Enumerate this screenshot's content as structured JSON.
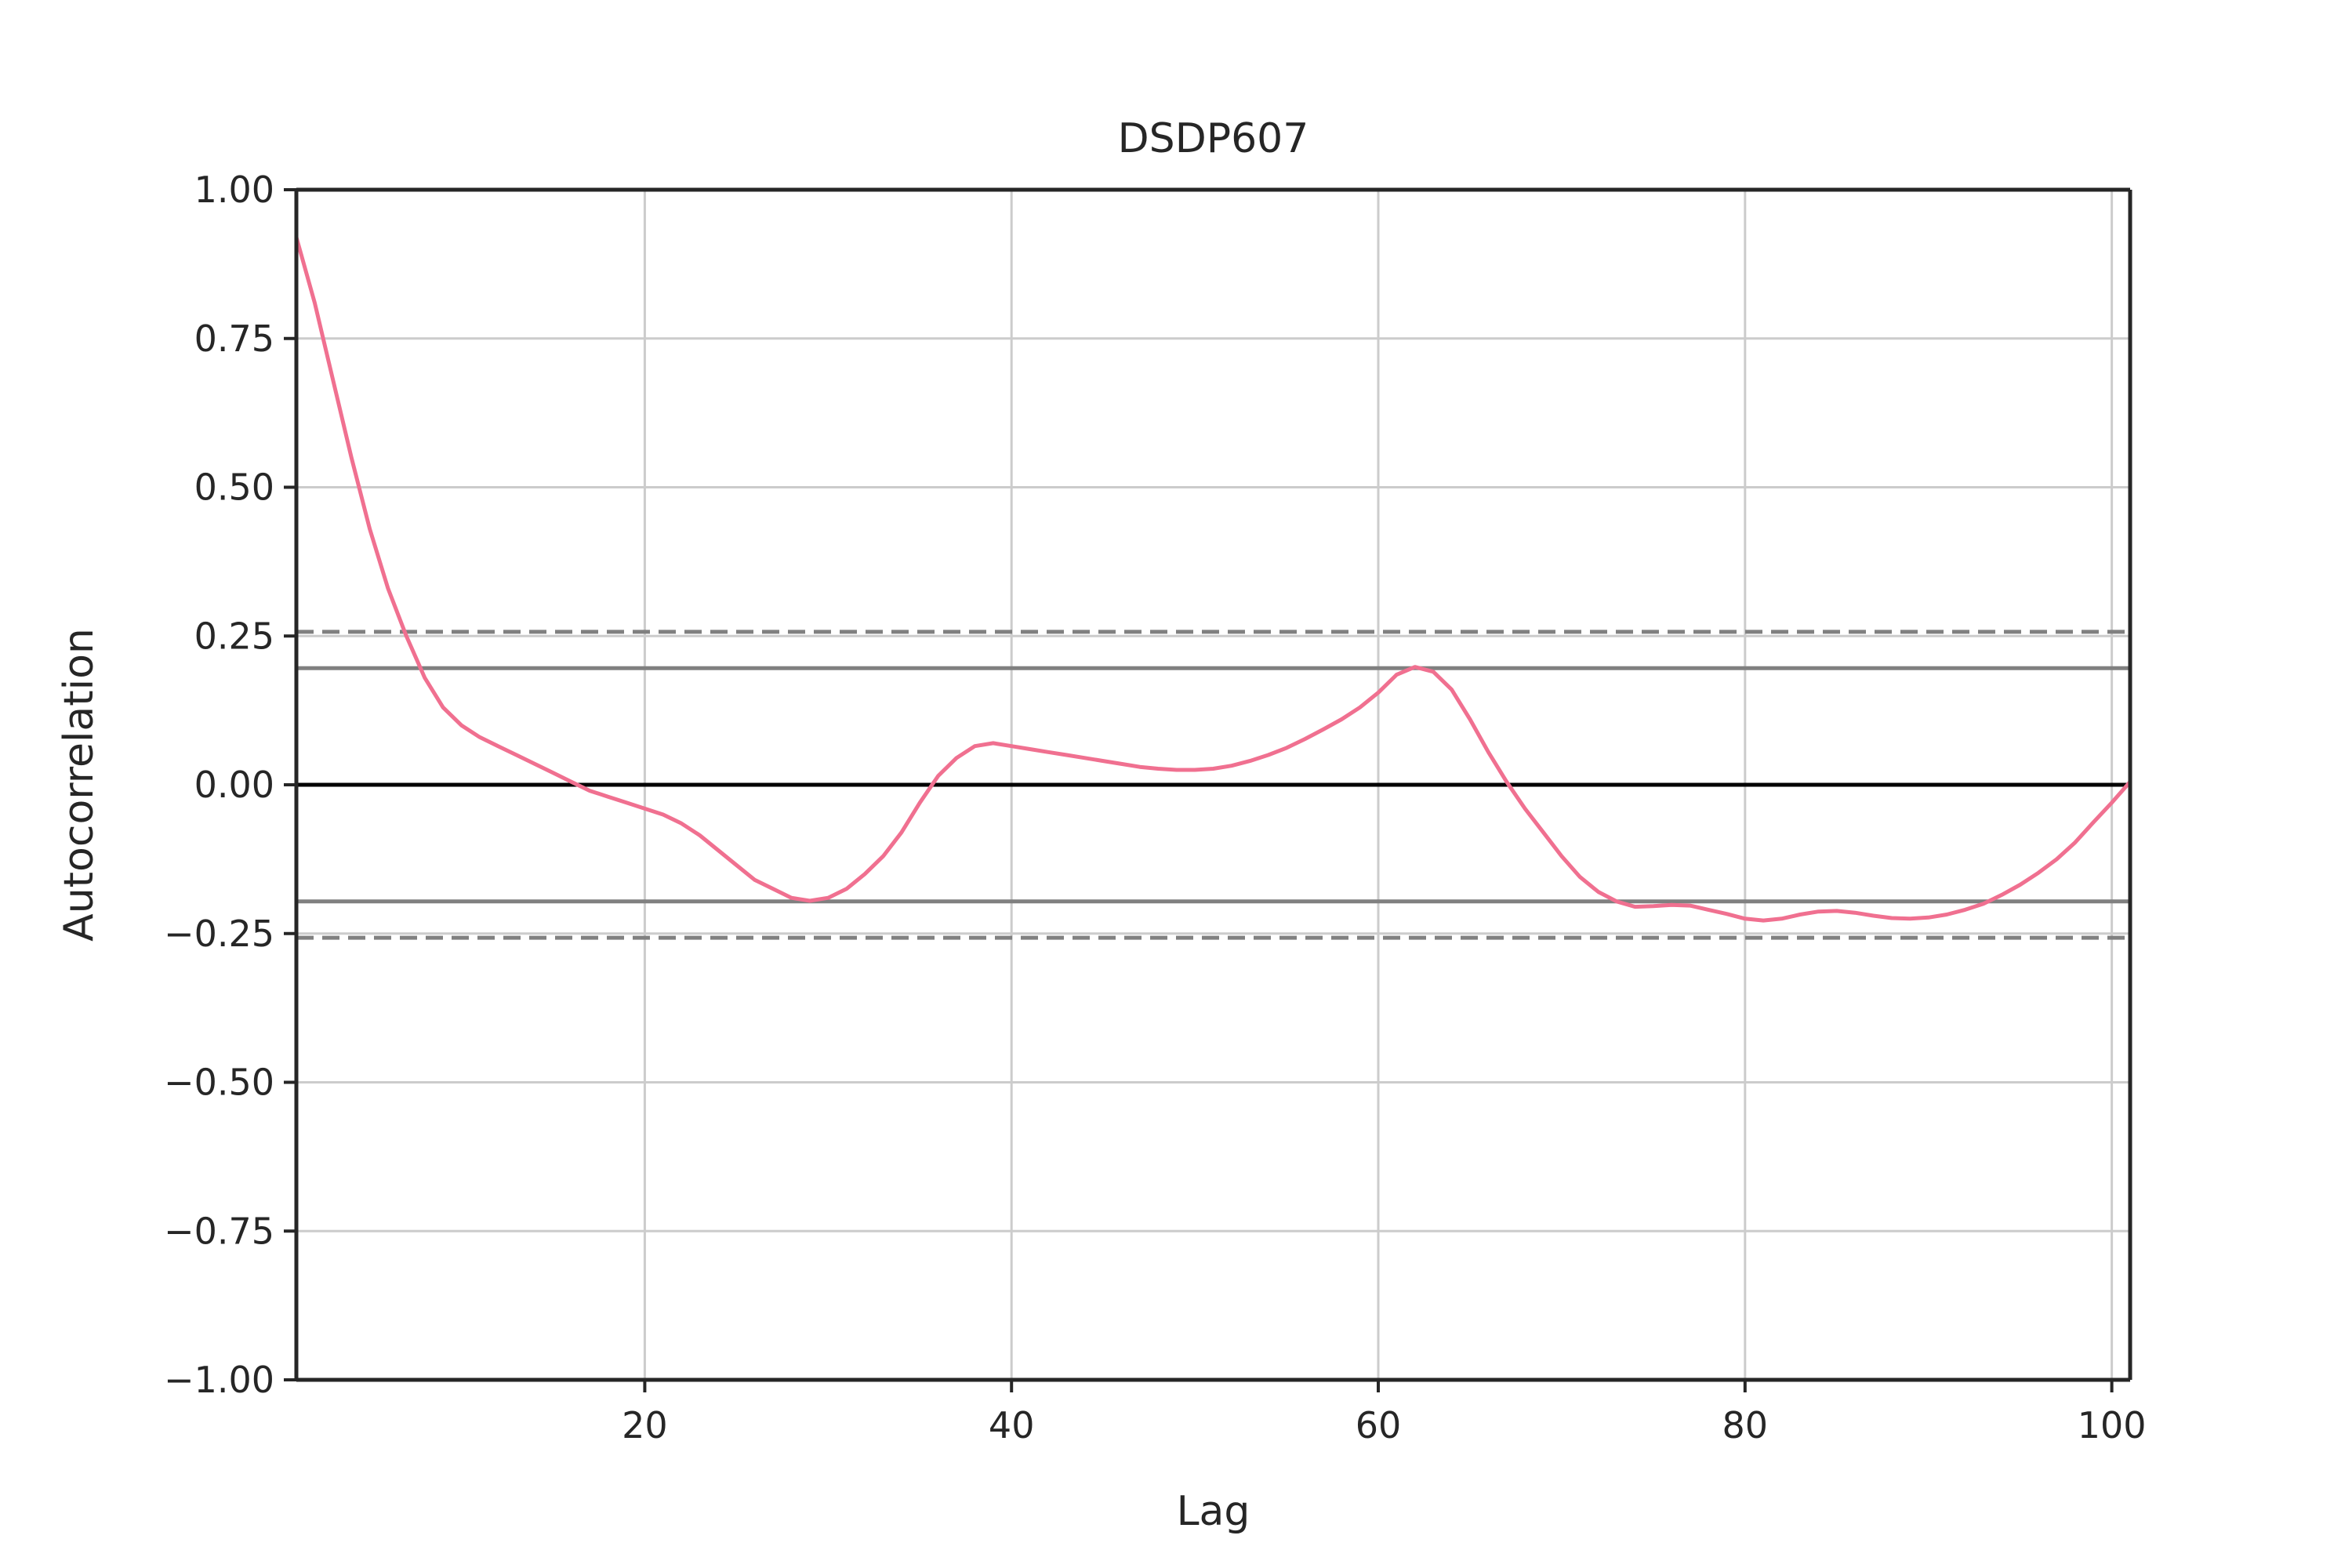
{
  "chart_data": {
    "type": "line",
    "title": "DSDP607",
    "xlabel": "Lag",
    "ylabel": "Autocorrelation",
    "xlim": [
      1,
      101
    ],
    "ylim": [
      -1.0,
      1.0
    ],
    "xticks": [
      20,
      40,
      60,
      80,
      100
    ],
    "yticks": [
      1.0,
      0.75,
      0.5,
      0.25,
      0.0,
      -0.25,
      -0.5,
      -0.75,
      -1.0
    ],
    "ytick_labels": [
      "1.00",
      "0.75",
      "0.50",
      "0.25",
      "0.00",
      "−0.25",
      "−0.50",
      "−0.75",
      "−1.00"
    ],
    "xtick_labels": [
      "20",
      "40",
      "60",
      "80",
      "100"
    ],
    "grid": true,
    "reference_lines": {
      "zero": 0.0,
      "ci_95": [
        0.196,
        -0.196
      ],
      "ci_99": [
        0.257,
        -0.257
      ]
    },
    "colors": {
      "series": "#f07090",
      "zero_line": "#000000",
      "ci_lines": "#808080",
      "grid": "#cccccc",
      "axes": "#262626"
    },
    "series": [
      {
        "x": [
          1,
          2,
          3,
          4,
          5,
          6,
          7,
          8,
          9,
          10,
          11,
          12,
          13,
          14,
          15,
          16,
          17,
          18,
          19,
          20,
          21,
          22,
          23,
          24,
          25,
          26,
          27,
          28,
          29,
          30,
          31,
          32,
          33,
          34,
          35,
          36,
          37,
          38,
          39,
          40,
          41,
          42,
          43,
          44,
          45,
          46,
          47,
          48,
          49,
          50,
          51,
          52,
          53,
          54,
          55,
          56,
          57,
          58,
          59,
          60,
          61,
          62,
          63,
          64,
          65,
          66,
          67,
          68,
          69,
          70,
          71,
          72,
          73,
          74,
          75,
          76,
          77,
          78,
          79,
          80,
          81,
          82,
          83,
          84,
          85,
          86,
          87,
          88,
          89,
          90,
          91,
          92,
          93,
          94,
          95,
          96,
          97,
          98,
          99,
          100,
          101
        ],
        "values": [
          0.92,
          0.81,
          0.68,
          0.55,
          0.43,
          0.33,
          0.25,
          0.18,
          0.13,
          0.1,
          0.08,
          0.065,
          0.05,
          0.035,
          0.02,
          0.005,
          -0.01,
          -0.02,
          -0.03,
          -0.04,
          -0.05,
          -0.065,
          -0.085,
          -0.11,
          -0.135,
          -0.16,
          -0.175,
          -0.19,
          -0.195,
          -0.19,
          -0.175,
          -0.15,
          -0.12,
          -0.08,
          -0.03,
          0.015,
          0.045,
          0.065,
          0.07,
          0.065,
          0.06,
          0.055,
          0.05,
          0.045,
          0.04,
          0.035,
          0.03,
          0.027,
          0.025,
          0.025,
          0.027,
          0.032,
          0.04,
          0.05,
          0.062,
          0.077,
          0.093,
          0.11,
          0.13,
          0.155,
          0.185,
          0.198,
          0.19,
          0.16,
          0.11,
          0.055,
          0.005,
          -0.04,
          -0.08,
          -0.12,
          -0.155,
          -0.18,
          -0.196,
          -0.205,
          -0.204,
          -0.202,
          -0.203,
          -0.21,
          -0.217,
          -0.225,
          -0.228,
          -0.225,
          -0.218,
          -0.213,
          -0.212,
          -0.215,
          -0.22,
          -0.224,
          -0.225,
          -0.223,
          -0.218,
          -0.21,
          -0.2,
          -0.185,
          -0.168,
          -0.148,
          -0.125,
          -0.097,
          -0.063,
          -0.03,
          0.005
        ]
      }
    ]
  }
}
